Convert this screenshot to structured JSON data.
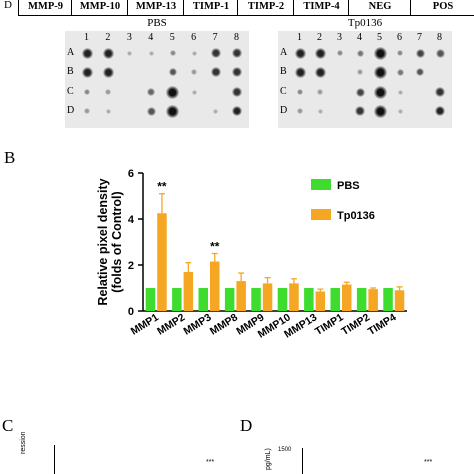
{
  "panel_a": {
    "header_label": "D",
    "header_cells": [
      "MMP-9",
      "MMP-10",
      "MMP-13",
      "TIMP-1",
      "TIMP-2",
      "TIMP-4",
      "NEG",
      "POS"
    ],
    "blots": [
      {
        "label": "PBS"
      },
      {
        "label": "Tp0136"
      }
    ],
    "column_numbers": [
      "1",
      "2",
      "3",
      "4",
      "5",
      "6",
      "7",
      "8"
    ],
    "row_labels": [
      "A",
      "B",
      "C",
      "D"
    ]
  },
  "panel_b": {
    "letter": "B",
    "legend": [
      {
        "name": "PBS",
        "color": "#3ddc2e"
      },
      {
        "name": "Tp0136",
        "color": "#f5a623"
      }
    ],
    "significance_marks": [
      "**",
      "**"
    ]
  },
  "panel_c": {
    "letter": "C",
    "ylabel_fragment": "ression",
    "mark": "***"
  },
  "panel_d": {
    "letter": "D",
    "ylabel_fragment": "pg/mL)",
    "tick": "1500",
    "mark": "***"
  },
  "chart_data": {
    "type": "bar",
    "xlabel": "",
    "ylabel": "Relative pixel density (folds of Control)",
    "ylim": [
      0,
      6
    ],
    "yticks": [
      "0",
      "2",
      "4",
      "6"
    ],
    "categories": [
      "MMP1",
      "MMP2",
      "MMP3",
      "MMP8",
      "MMP9",
      "MMP10",
      "MMP13",
      "TIMP1",
      "TIMP2",
      "TIMP4"
    ],
    "series": [
      {
        "name": "PBS",
        "color": "#3ddc2e",
        "values": [
          1,
          1,
          1,
          1,
          1,
          1,
          1,
          1,
          1,
          1
        ],
        "errors": [
          0,
          0,
          0,
          0,
          0,
          0,
          0,
          0,
          0,
          0
        ]
      },
      {
        "name": "Tp0136",
        "color": "#f5a623",
        "values": [
          4.25,
          1.7,
          2.15,
          1.3,
          1.2,
          1.2,
          0.85,
          1.15,
          0.95,
          0.9
        ],
        "errors": [
          0.85,
          0.4,
          0.35,
          0.35,
          0.25,
          0.2,
          0.1,
          0.1,
          0.05,
          0.15
        ]
      }
    ],
    "annotations": [
      {
        "category": "MMP1",
        "text": "**"
      },
      {
        "category": "MMP3",
        "text": "**"
      }
    ],
    "grid": false,
    "legend_position": "top-right"
  }
}
